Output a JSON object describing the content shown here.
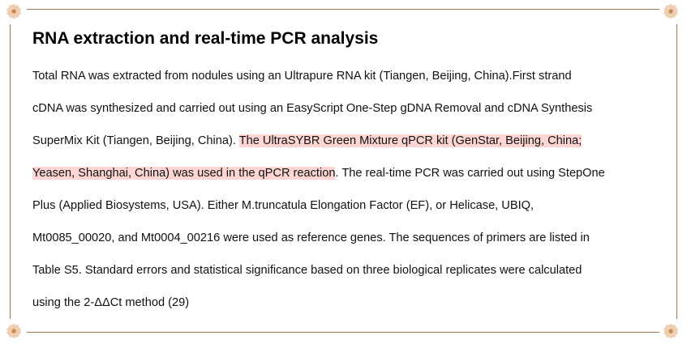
{
  "heading": "RNA extraction and real-time PCR analysis",
  "colors": {
    "border": "#a87650",
    "highlight": "#fdd6d4"
  },
  "ornament_icon": "flower-icon",
  "lines": [
    [
      {
        "t": "Total RNA was extracted from nodules using an Ultrapure RNA kit (Tiangen, Beijing, China).First strand",
        "hl": false
      }
    ],
    [
      {
        "t": "cDNA was synthesized and carried out using an EasyScript One-Step gDNA Removal and cDNA Synthesis",
        "hl": false
      }
    ],
    [
      {
        "t": "SuperMix Kit (Tiangen, Beijing, China). ",
        "hl": false
      },
      {
        "t": "The UltraSYBR Green Mixture qPCR kit (GenStar, Beijing, China;",
        "hl": true
      }
    ],
    [
      {
        "t": "Yeasen, Shanghai, China) was used in the qPCR reaction",
        "hl": true
      },
      {
        "t": ". The real-time PCR was carried out using StepOne",
        "hl": false
      }
    ],
    [
      {
        "t": "Plus (Applied Biosystems, USA). Either M.truncatula Elongation Factor (EF), or Helicase, UBIQ,",
        "hl": false
      }
    ],
    [
      {
        "t": "Mt0085_00020, and Mt0004_00216 were used as reference genes. The sequences of primers are listed in",
        "hl": false
      }
    ],
    [
      {
        "t": "Table S5. Standard errors and statistical significance based on three biological replicates were calculated",
        "hl": false
      }
    ],
    [
      {
        "t": "using the 2-ΔΔCt method (29)",
        "hl": false
      }
    ]
  ]
}
